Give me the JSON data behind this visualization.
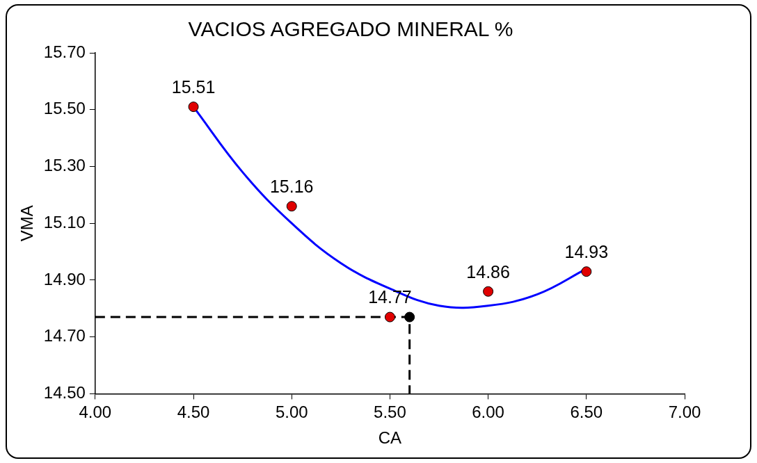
{
  "chart_data": {
    "type": "scatter",
    "title": "VACIOS AGREGADO MINERAL %",
    "xlabel": "CA",
    "ylabel": "VMA",
    "xlim": [
      4.0,
      7.0
    ],
    "xticks": [
      {
        "value": 4,
        "label": "4.00"
      },
      {
        "value": 4.5,
        "label": "4.50"
      },
      {
        "value": 5,
        "label": "5.00"
      },
      {
        "value": 5.5,
        "label": "5.50"
      },
      {
        "value": 6,
        "label": "6.00"
      },
      {
        "value": 6.5,
        "label": "6.50"
      },
      {
        "value": 7,
        "label": "7.00"
      }
    ],
    "ylim": [
      14.5,
      15.7
    ],
    "yticks": [
      {
        "value": 14.5,
        "label": "14.50"
      },
      {
        "value": 14.7,
        "label": "14.70"
      },
      {
        "value": 14.9,
        "label": "14.90"
      },
      {
        "value": 15.1,
        "label": "15.10"
      },
      {
        "value": 15.3,
        "label": "15.30"
      },
      {
        "value": 15.5,
        "label": "15.50"
      },
      {
        "value": 15.7,
        "label": "15.70"
      }
    ],
    "grid": false,
    "legend": false,
    "series": [
      {
        "type": "line",
        "color": "#0000ff",
        "marker": "none",
        "line_style": "solid",
        "x": [
          4.5,
          4.75,
          5.0,
          5.25,
          5.5,
          5.75,
          6.0,
          6.25,
          6.5
        ],
        "values": [
          15.51,
          15.28,
          15.1,
          14.96,
          14.87,
          14.81,
          14.81,
          14.85,
          14.94
        ]
      },
      {
        "type": "line",
        "color": "#000000",
        "marker": "none",
        "line_style": "dashed",
        "x": [
          4.0,
          5.6,
          5.6
        ],
        "values": [
          14.77,
          14.77,
          14.5
        ]
      },
      {
        "type": "scatter",
        "color": "#000000",
        "marker": "circle",
        "x": [
          5.6
        ],
        "values": [
          14.77
        ]
      },
      {
        "type": "scatter",
        "color": "#e00000",
        "marker": "circle",
        "x": [
          4.5,
          5.0,
          5.5,
          6.0,
          6.5
        ],
        "values": [
          15.51,
          15.16,
          14.77,
          14.86,
          14.93
        ],
        "value_labels": [
          "15.51",
          "15.16",
          "14.77",
          "14.86",
          "14.93"
        ]
      }
    ]
  }
}
